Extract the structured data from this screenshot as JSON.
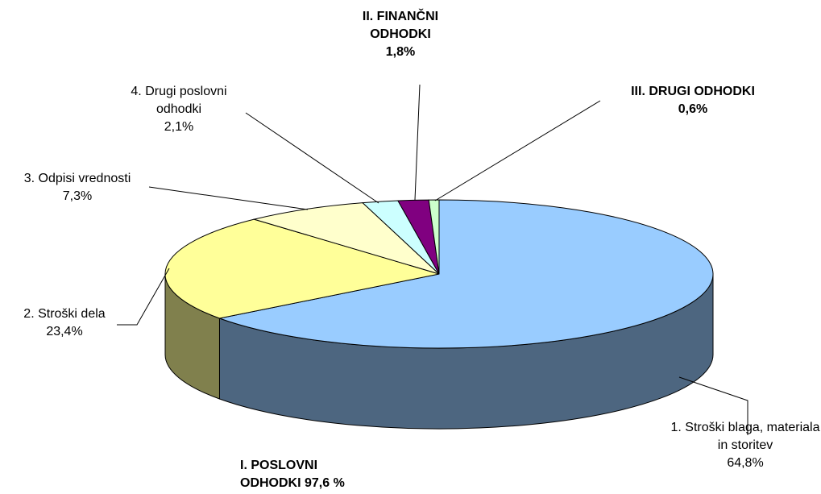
{
  "chart_data": {
    "type": "pie3d",
    "categories": [
      "1. Stroški blaga, materiala in storitev",
      "2. Stroški dela",
      "3. Odpisi vrednosti",
      "4. Drugi poslovni odhodki",
      "II. FINANČNI ODHODKI",
      "III. DRUGI ODHODKI"
    ],
    "values": [
      64.8,
      23.4,
      7.3,
      2.1,
      1.8,
      0.6
    ],
    "value_labels": [
      "64,8%",
      "23,4%",
      "7,3%",
      "2,1%",
      "1,8%",
      "0,6%"
    ],
    "colors": [
      "#99ccff",
      "#ffff99",
      "#ffffcc",
      "#ccffff",
      "#800080",
      "#ccffcc"
    ],
    "annotation": "I. POSLOVNI ODHODKI 97,6 %"
  }
}
